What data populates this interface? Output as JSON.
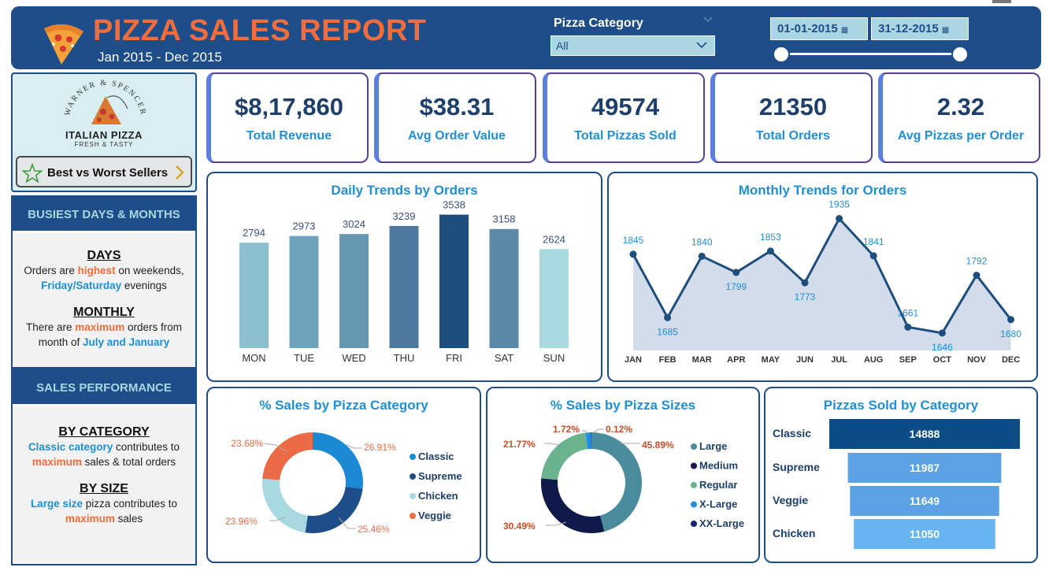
{
  "header": {
    "title": "PIZZA SALES REPORT",
    "subtitle": "Jan 2015 - Dec 2015",
    "filter": {
      "label": "Pizza Category",
      "value": "All"
    },
    "date_from": "01-01-2015",
    "date_to": "31-12-2015"
  },
  "brand": {
    "arc_text": "WARNER & SPENCER",
    "name": "ITALIAN PIZZA",
    "tagline": "FRESH & TASTY",
    "button_label": "Best vs Worst Sellers"
  },
  "sidebar": {
    "busiest": {
      "heading": "BUSIEST DAYS & MONTHS",
      "days_title": "DAYS",
      "days_t1": "Orders are ",
      "days_t2": "highest",
      "days_t3": " on weekends,",
      "days_t4": "Friday/Saturday",
      "days_t5": " evenings",
      "months_title": "MONTHLY",
      "months_t1": "There are ",
      "months_t2": "maximum",
      "months_t3": " orders from",
      "months_t4": "month of ",
      "months_t5": "July and January"
    },
    "performance": {
      "heading": "SALES PERFORMANCE",
      "cat_title": "BY CATEGORY",
      "cat_t1": "Classic category",
      "cat_t2": " contributes to",
      "cat_t3": "maximum",
      "cat_t4": " sales & total orders",
      "size_title": "BY SIZE",
      "size_t1": "Large size",
      "size_t2": " pizza contributes to",
      "size_t3": "maximum",
      "size_t4": " sales"
    }
  },
  "kpis": [
    {
      "value": "$8,17,860",
      "label": "Total Revenue"
    },
    {
      "value": "$38.31",
      "label": "Avg Order Value"
    },
    {
      "value": "49574",
      "label": "Total Pizzas Sold"
    },
    {
      "value": "21350",
      "label": "Total Orders"
    },
    {
      "value": "2.32",
      "label": "Avg Pizzas per Order"
    }
  ],
  "panels": {
    "daily": {
      "title": "Daily Trends by Orders"
    },
    "monthly": {
      "title": "Monthly Trends for Orders"
    },
    "category": {
      "title": "% Sales by Pizza Category"
    },
    "sizes": {
      "title": "% Sales by Pizza Sizes"
    },
    "sold": {
      "title": "Pizzas Sold by Category"
    }
  },
  "chart_data": [
    {
      "type": "bar",
      "title": "Daily Trends by Orders",
      "categories": [
        "MON",
        "TUE",
        "WED",
        "THU",
        "FRI",
        "SAT",
        "SUN"
      ],
      "values": [
        2794,
        2973,
        3024,
        3239,
        3538,
        3158,
        2624
      ],
      "colors": [
        "#8bbfcf",
        "#6fa3bb",
        "#6597b1",
        "#4b7a9c",
        "#1d4e7e",
        "#5b8aa8",
        "#a9d9e0"
      ],
      "ylim": [
        0,
        3800
      ],
      "grid": false
    },
    {
      "type": "area",
      "title": "Monthly Trends for Orders",
      "categories": [
        "JAN",
        "FEB",
        "MAR",
        "APR",
        "MAY",
        "JUN",
        "JUL",
        "AUG",
        "SEP",
        "OCT",
        "NOV",
        "DEC"
      ],
      "values": [
        1845,
        1685,
        1840,
        1799,
        1853,
        1773,
        1935,
        1841,
        1661,
        1646,
        1792,
        1680
      ],
      "ylim": [
        1600,
        1950
      ],
      "line_color": "#1d4e7e",
      "fill_color": "#d2dcea",
      "label_color": "#1f8fd6",
      "grid": false
    },
    {
      "type": "pie",
      "title": "% Sales by Pizza Category",
      "labels": [
        "Classic",
        "Supreme",
        "Chicken",
        "Veggie"
      ],
      "values": [
        26.91,
        25.46,
        23.96,
        23.68
      ],
      "display": [
        "26.91%",
        "25.46%",
        "23.96%",
        "23.68%"
      ],
      "colors": [
        "#1a8ad4",
        "#1d4e89",
        "#a9d9e0",
        "#ed6a46"
      ],
      "legend": "right"
    },
    {
      "type": "pie",
      "title": "% Sales by Pizza Sizes",
      "labels": [
        "Large",
        "Medium",
        "Regular",
        "X-Large",
        "XX-Large"
      ],
      "values": [
        45.89,
        30.49,
        21.77,
        1.72,
        0.12
      ],
      "display": [
        "45.89%",
        "30.49%",
        "21.77%",
        "1.72%",
        "0.12%"
      ],
      "colors": [
        "#4a8c9c",
        "#0f1a4a",
        "#6bb38c",
        "#1f8fe6",
        "#14237e"
      ],
      "legend": "right"
    },
    {
      "type": "bar",
      "title": "Pizzas Sold by Category",
      "orientation": "horizontal-funnel",
      "categories": [
        "Classic",
        "Supreme",
        "Veggie",
        "Chicken"
      ],
      "values": [
        14888,
        11987,
        11649,
        11050
      ],
      "colors": [
        "#0d4d87",
        "#5aa2e4",
        "#5aa2e4",
        "#66b4f0"
      ]
    }
  ]
}
